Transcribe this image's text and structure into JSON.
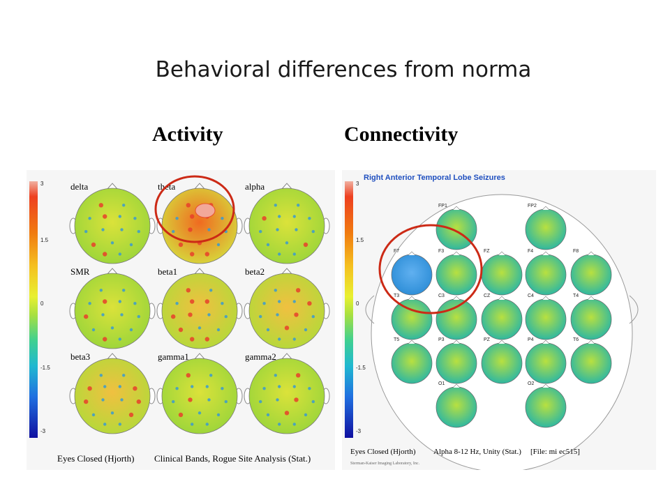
{
  "slide": {
    "title": "Behavioral differences from norma",
    "activity_heading": "Activity",
    "connectivity_heading": "Connectivity"
  },
  "activity_panel": {
    "scale_ticks": [
      "3",
      "1.5",
      "0",
      "-1.5",
      "-3"
    ],
    "maps": [
      {
        "label": "delta",
        "hot": 0.35
      },
      {
        "label": "theta",
        "hot": 0.95
      },
      {
        "label": "alpha",
        "hot": 0.2
      },
      {
        "label": "SMR",
        "hot": 0.4
      },
      {
        "label": "beta1",
        "hot": 0.85
      },
      {
        "label": "beta2",
        "hot": 0.6
      },
      {
        "label": "beta3",
        "hot": 0.65
      },
      {
        "label": "gamma1",
        "hot": 0.4
      },
      {
        "label": "gamma2",
        "hot": 0.25
      }
    ],
    "footer_left": "Eyes Closed (Hjorth)",
    "footer_right": "Clinical Bands, Rogue Site Analysis (Stat.)"
  },
  "connectivity_panel": {
    "title": "Right Anterior Temporal Lobe Seizures",
    "scale_ticks": [
      "3",
      "1.5",
      "0",
      "-1.5",
      "-3"
    ],
    "sites": [
      {
        "label": "FP1"
      },
      {
        "label": "FP2"
      },
      {
        "label": "F7"
      },
      {
        "label": "F3"
      },
      {
        "label": "FZ"
      },
      {
        "label": "F4"
      },
      {
        "label": "F8"
      },
      {
        "label": "T3"
      },
      {
        "label": "C3"
      },
      {
        "label": "CZ"
      },
      {
        "label": "C4"
      },
      {
        "label": "T4"
      },
      {
        "label": "T5"
      },
      {
        "label": "P3"
      },
      {
        "label": "PZ"
      },
      {
        "label": "P4"
      },
      {
        "label": "T6"
      },
      {
        "label": "O1"
      },
      {
        "label": "O2"
      }
    ],
    "footer_left": "Eyes Closed (Hjorth)",
    "footer_mid": "Alpha 8-12 Hz, Unity (Stat.)",
    "footer_right": "[File:   mi      ec515]",
    "credit": "Sterman-Kaiser Imaging Laboratory, Inc."
  },
  "colors": {
    "highlight_circle": "#cc2a16",
    "head_green": "#9fd63a",
    "head_yellow": "#dbe23a",
    "head_blue": "#2f8fd8"
  }
}
